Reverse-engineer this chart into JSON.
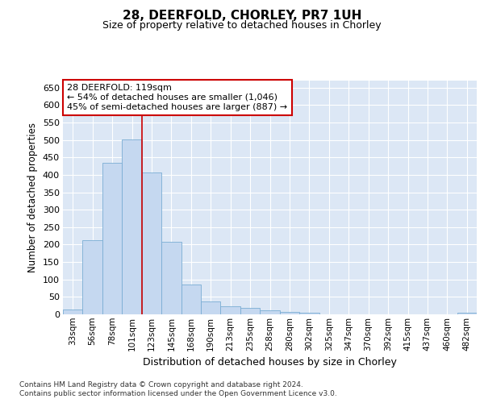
{
  "title1": "28, DEERFOLD, CHORLEY, PR7 1UH",
  "title2": "Size of property relative to detached houses in Chorley",
  "xlabel": "Distribution of detached houses by size in Chorley",
  "ylabel": "Number of detached properties",
  "categories": [
    "33sqm",
    "56sqm",
    "78sqm",
    "101sqm",
    "123sqm",
    "145sqm",
    "168sqm",
    "190sqm",
    "213sqm",
    "235sqm",
    "258sqm",
    "280sqm",
    "302sqm",
    "325sqm",
    "347sqm",
    "370sqm",
    "392sqm",
    "415sqm",
    "437sqm",
    "460sqm",
    "482sqm"
  ],
  "values": [
    15,
    212,
    435,
    502,
    407,
    207,
    85,
    38,
    22,
    18,
    12,
    8,
    5,
    0,
    0,
    0,
    0,
    0,
    0,
    0,
    5
  ],
  "bar_color": "#c5d8f0",
  "bar_edge_color": "#7aadd4",
  "vline_x": 4,
  "vline_color": "#cc0000",
  "annotation_text": "28 DEERFOLD: 119sqm\n← 54% of detached houses are smaller (1,046)\n45% of semi-detached houses are larger (887) →",
  "annotation_box_color": "#ffffff",
  "annotation_box_edge": "#cc0000",
  "ylim": [
    0,
    670
  ],
  "yticks": [
    0,
    50,
    100,
    150,
    200,
    250,
    300,
    350,
    400,
    450,
    500,
    550,
    600,
    650
  ],
  "fig_bg_color": "#ffffff",
  "plot_bg_color": "#dce7f5",
  "grid_color": "#ffffff",
  "footer1": "Contains HM Land Registry data © Crown copyright and database right 2024.",
  "footer2": "Contains public sector information licensed under the Open Government Licence v3.0."
}
